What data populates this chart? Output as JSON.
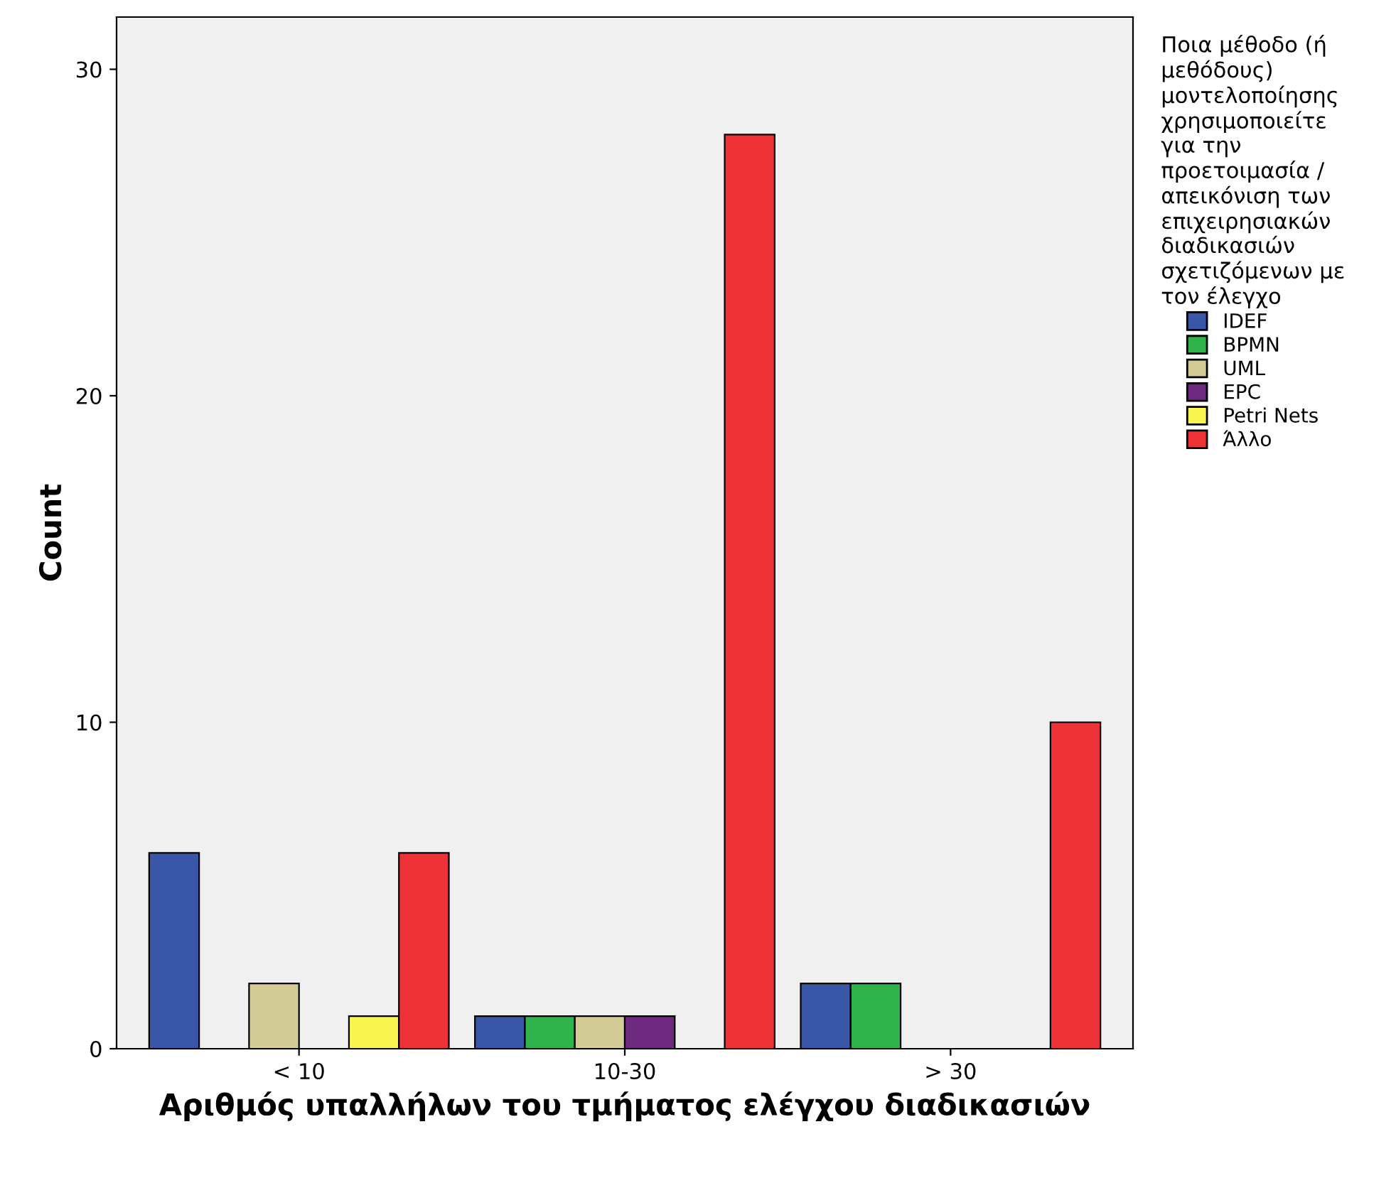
{
  "chart_data": {
    "type": "bar",
    "xlabel": "Αριθμός υπαλλήλων του τμήματος ελέγχου διαδικασιών",
    "ylabel": "Count",
    "legend_title": "Ποια μέθοδο (ή\nμεθόδους)\nμοντελοποίησης\nχρησιμοποιείτε\nγια την\nπροετοιμασία /\nαπεικόνιση των\nεπιχειρησιακών\nδιαδικασιών\nσχετιζόμενων με\nτον έλεγχο",
    "categories": [
      "< 10",
      "10-30",
      "> 30"
    ],
    "series": [
      {
        "name": "IDEF",
        "color": "#3a56a6",
        "values": [
          6,
          1,
          2
        ]
      },
      {
        "name": "BPMN",
        "color": "#2fb34a",
        "values": [
          null,
          1,
          2
        ]
      },
      {
        "name": "UML",
        "color": "#d3cc96",
        "values": [
          2,
          1,
          null
        ]
      },
      {
        "name": "EPC",
        "color": "#6d2a7e",
        "values": [
          null,
          1,
          null
        ]
      },
      {
        "name": "Petri Nets",
        "color": "#f9f550",
        "values": [
          1,
          null,
          null
        ]
      },
      {
        "name": "Άλλο",
        "color": "#ee3338",
        "values": [
          6,
          28,
          10
        ]
      }
    ],
    "ylim": [
      0,
      31.6
    ],
    "yticks": [
      0,
      10,
      20,
      30
    ],
    "grid": false,
    "legend": "right"
  }
}
